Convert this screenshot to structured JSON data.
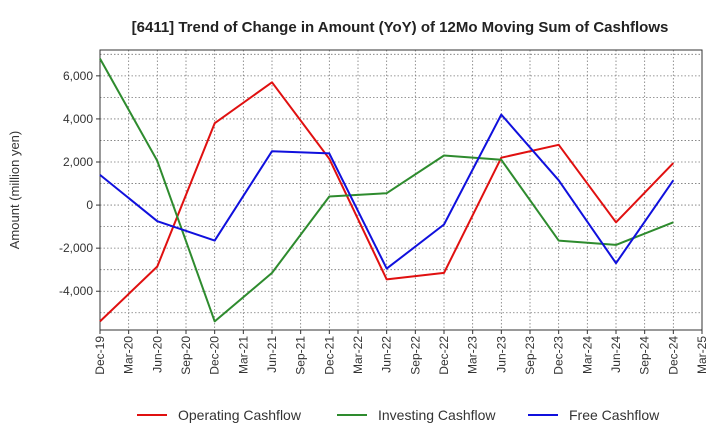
{
  "chart_data": {
    "type": "line",
    "title": "[6411]  Trend of Change in Amount (YoY) of 12Mo Moving Sum of Cashflows",
    "xlabel": "",
    "ylabel": "Amount (million yen)",
    "categories": [
      "Dec-19",
      "Mar-20",
      "Jun-20",
      "Sep-20",
      "Dec-20",
      "Mar-21",
      "Jun-21",
      "Sep-21",
      "Dec-21",
      "Mar-22",
      "Jun-22",
      "Sep-22",
      "Dec-22",
      "Mar-23",
      "Jun-23",
      "Sep-23",
      "Dec-23",
      "Mar-24",
      "Jun-24",
      "Sep-24",
      "Dec-24",
      "Mar-25"
    ],
    "ylim": [
      -5800,
      7200
    ],
    "yticks": [
      -4000,
      -2000,
      0,
      2000,
      4000,
      6000
    ],
    "ytick_labels": [
      "-4,000",
      "-2,000",
      "0",
      "2,000",
      "4,000",
      "6,000"
    ],
    "grid": true,
    "series": [
      {
        "name": "Operating Cashflow",
        "color": "#e01010",
        "values": [
          -5400,
          null,
          -2850,
          null,
          3800,
          null,
          5700,
          null,
          2150,
          null,
          -3450,
          null,
          -3150,
          null,
          2200,
          null,
          2800,
          null,
          -800,
          null,
          1950,
          null
        ]
      },
      {
        "name": "Investing Cashflow",
        "color": "#2e8b2e",
        "values": [
          6800,
          null,
          2050,
          null,
          -5400,
          null,
          -3150,
          null,
          400,
          null,
          550,
          null,
          2300,
          null,
          2100,
          null,
          -1650,
          null,
          -1850,
          null,
          -800,
          null
        ]
      },
      {
        "name": "Free Cashflow",
        "color": "#1010dd",
        "values": [
          1400,
          null,
          -750,
          null,
          -1650,
          null,
          2500,
          null,
          2400,
          null,
          -2950,
          null,
          -900,
          null,
          4200,
          null,
          1150,
          null,
          -2700,
          null,
          1150,
          null
        ]
      }
    ]
  }
}
